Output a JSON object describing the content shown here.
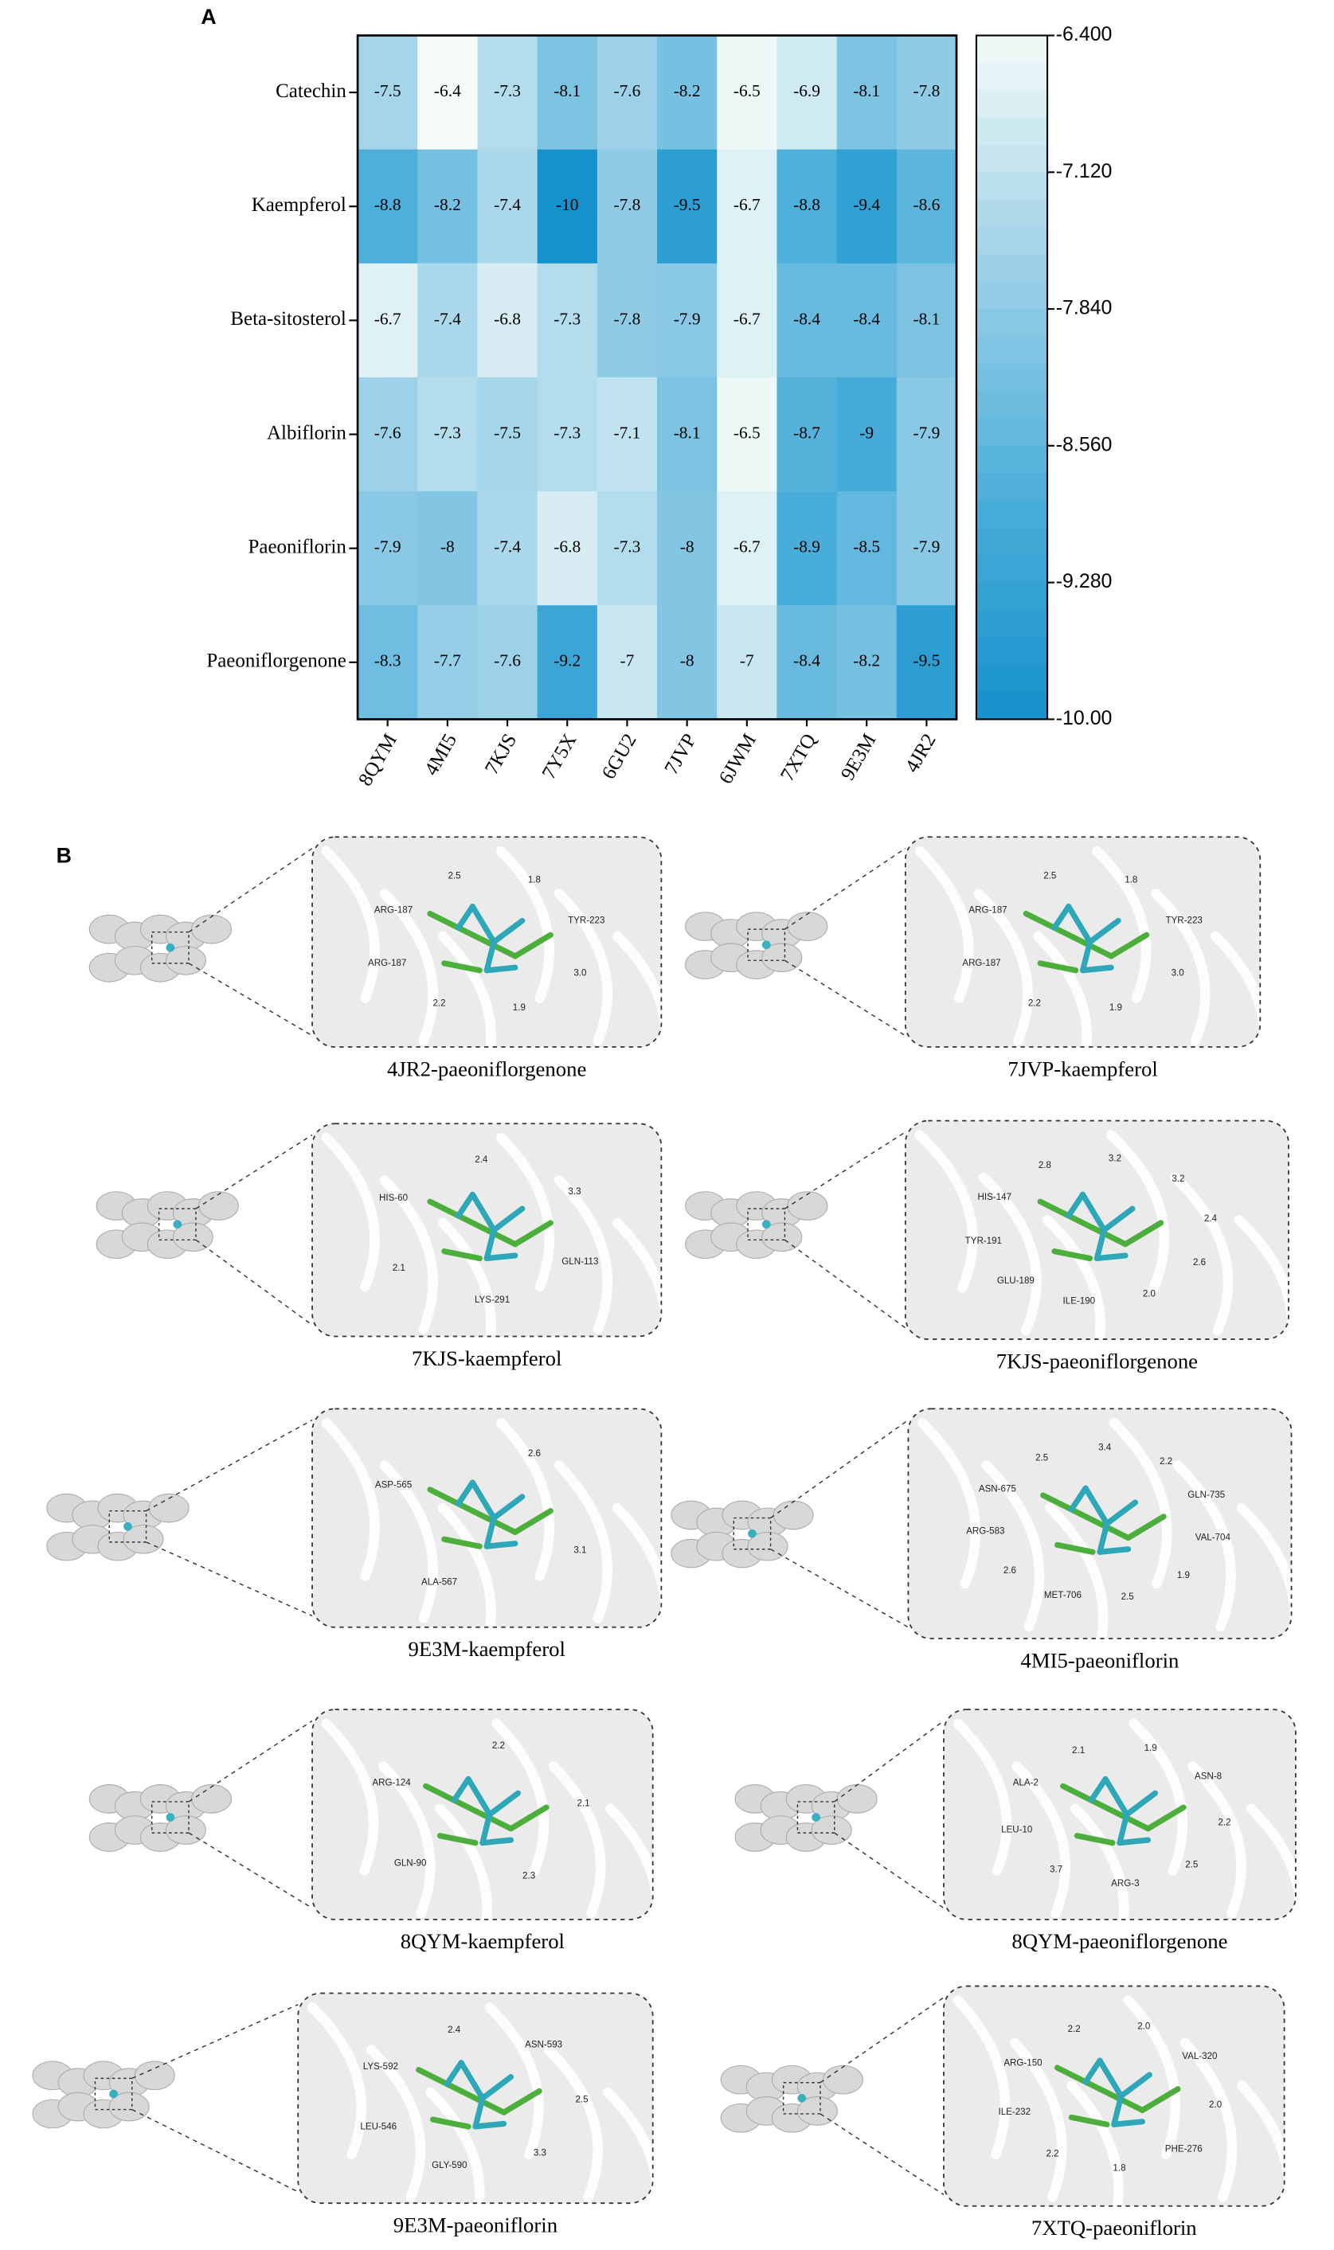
{
  "chart_data": {
    "type": "heatmap",
    "panel_label": "A",
    "rows": [
      "Catechin",
      "Kaempferol",
      "Beta-sitosterol",
      "Albiflorin",
      "Paeoniflorin",
      "Paeoniflorgenone"
    ],
    "columns": [
      "8QYM",
      "4MI5",
      "7KJS",
      "7Y5X",
      "6GU2",
      "7JVP",
      "6JWM",
      "7XTQ",
      "9E3M",
      "4JR2"
    ],
    "values": [
      [
        -7.5,
        -6.4,
        -7.3,
        -8.1,
        -7.6,
        -8.2,
        -6.5,
        -6.9,
        -8.1,
        -7.8
      ],
      [
        -8.8,
        -8.2,
        -7.4,
        -10,
        -7.8,
        -9.5,
        -6.7,
        -8.8,
        -9.4,
        -8.6
      ],
      [
        -6.7,
        -7.4,
        -6.8,
        -7.3,
        -7.8,
        -7.9,
        -6.7,
        -8.4,
        -8.4,
        -8.1
      ],
      [
        -7.6,
        -7.3,
        -7.5,
        -7.3,
        -7.1,
        -8.1,
        -6.5,
        -8.7,
        -9,
        -7.9
      ],
      [
        -7.9,
        -8,
        -7.4,
        -6.8,
        -7.3,
        -8,
        -6.7,
        -8.9,
        -8.5,
        -7.9
      ],
      [
        -8.3,
        -7.7,
        -7.6,
        -9.2,
        -7,
        -8,
        -7,
        -8.4,
        -8.2,
        -9.5
      ]
    ],
    "clim": [
      -10,
      -6.4
    ],
    "cticks": [
      {
        "value": -6.4,
        "label": "-6.400"
      },
      {
        "value": -7.12,
        "label": "-7.120"
      },
      {
        "value": -7.84,
        "label": "-7.840"
      },
      {
        "value": -8.56,
        "label": "-8.560"
      },
      {
        "value": -9.28,
        "label": "-9.280"
      },
      {
        "value": -10,
        "label": "-10.00"
      }
    ],
    "colors": [
      "#1591cb",
      "#4eafda",
      "#9dd1e8",
      "#f4fbf8"
    ]
  },
  "panel_b": {
    "label": "B",
    "panels": [
      {
        "caption": "4JR2-paeoniflorgenone",
        "labels": [
          "ARG-187",
          "2.5",
          "1.8",
          "TYR-223",
          "3.0",
          "1.9",
          "2.2",
          "ARG-187"
        ]
      },
      {
        "caption": "7JVP-kaempferol",
        "labels": [
          "ARG-187",
          "2.5",
          "1.8",
          "TYR-223",
          "3.0",
          "1.9",
          "2.2",
          "ARG-187"
        ]
      },
      {
        "caption": "7KJS-kaempferol",
        "labels": [
          "HIS-60",
          "2.4",
          "3.3",
          "GLN-113",
          "LYS-291",
          "2.1"
        ]
      },
      {
        "caption": "7KJS-paeoniflorgenone",
        "labels": [
          "HIS-147",
          "2.8",
          "3.2",
          "3.2",
          "2.4",
          "2.6",
          "2.0",
          "ILE-190",
          "GLU-189",
          "TYR-191"
        ]
      },
      {
        "caption": "9E3M-kaempferol",
        "labels": [
          "ASP-565",
          "2.6",
          "3.1",
          "ALA-567"
        ]
      },
      {
        "caption": "4MI5-paeoniflorin",
        "labels": [
          "ASN-675",
          "2.5",
          "3.4",
          "2.2",
          "GLN-735",
          "VAL-704",
          "1.9",
          "2.5",
          "MET-706",
          "2.6",
          "ARG-583"
        ]
      },
      {
        "caption": "8QYM-kaempferol",
        "labels": [
          "ARG-124",
          "2.2",
          "2.1",
          "2.3",
          "GLN-90"
        ]
      },
      {
        "caption": "8QYM-paeoniflorgenone",
        "labels": [
          "ALA-2",
          "2.1",
          "1.9",
          "ASN-8",
          "2.2",
          "2.5",
          "ARG-3",
          "3.7",
          "LEU-10"
        ]
      },
      {
        "caption": "9E3M-paeoniflorin",
        "labels": [
          "LYS-592",
          "2.4",
          "ASN-593",
          "2.5",
          "3.3",
          "GLY-590",
          "LEU-546"
        ]
      },
      {
        "caption": "7XTQ-paeoniflorin",
        "labels": [
          "ARG-150",
          "2.2",
          "2.0",
          "VAL-320",
          "2.0",
          "PHE-276",
          "1.8",
          "2.2",
          "ILE-232"
        ]
      }
    ]
  }
}
